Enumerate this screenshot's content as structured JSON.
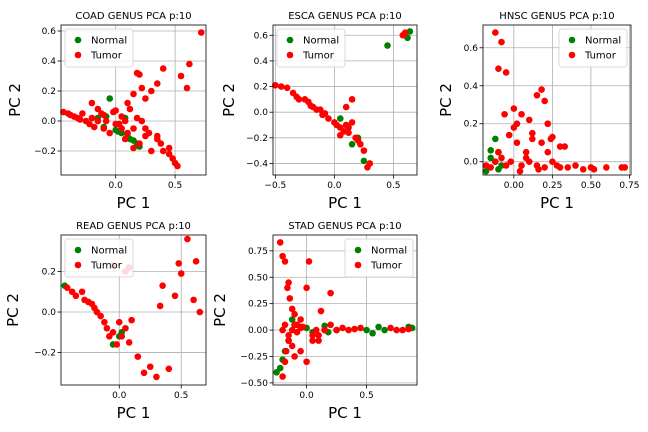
{
  "chart_data": [
    {
      "type": "scatter",
      "title": "COAD GENUS PCA p:10",
      "xlabel": "PC 1",
      "ylabel": "PC 2",
      "xlim": [
        -0.46,
        0.76
      ],
      "ylim": [
        -0.36,
        0.64
      ],
      "xticks": [
        0.0,
        0.5
      ],
      "xtick_labels": [
        "0.0",
        "0.5"
      ],
      "yticks": [
        -0.2,
        0.0,
        0.2,
        0.4,
        0.6
      ],
      "ytick_labels": [
        "−0.2",
        "0.0",
        "0.2",
        "0.4",
        "0.6"
      ],
      "grid": true,
      "legend": "upper-left",
      "series": [
        {
          "name": "Normal",
          "color": "#008000",
          "x": [
            -0.15,
            -0.1,
            -0.05,
            0.0,
            0.05,
            0.08,
            0.1,
            0.15,
            0.18,
            0.2,
            -0.08,
            0.02,
            0.12
          ],
          "y": [
            0.02,
            -0.04,
            0.15,
            -0.06,
            -0.08,
            0.02,
            -0.1,
            -0.13,
            -0.15,
            -0.17,
            0.03,
            -0.07,
            -0.12
          ]
        },
        {
          "name": "Tumor",
          "color": "#ff0000",
          "x": [
            -0.44,
            -0.4,
            -0.38,
            -0.35,
            -0.32,
            -0.3,
            -0.28,
            -0.25,
            -0.22,
            -0.2,
            -0.18,
            -0.15,
            -0.12,
            -0.1,
            -0.08,
            -0.05,
            -0.02,
            0.0,
            0.03,
            0.05,
            0.08,
            0.1,
            0.12,
            0.15,
            0.18,
            0.2,
            0.22,
            0.25,
            0.28,
            0.3,
            0.35,
            0.38,
            0.4,
            0.45,
            0.48,
            0.5,
            0.52,
            0.55,
            0.6,
            0.62,
            0.72,
            0.15,
            0.18,
            0.2,
            0.22,
            0.25,
            0.3,
            0.35,
            0.4,
            -0.2,
            -0.15,
            -0.1,
            0.0,
            0.05,
            0.08,
            0.1,
            0.15,
            0.25,
            0.35,
            0.45
          ],
          "y": [
            0.06,
            0.05,
            0.04,
            0.03,
            0.02,
            0.01,
            0.05,
            0.0,
            -0.02,
            0.02,
            -0.04,
            0.0,
            0.05,
            -0.05,
            0.0,
            -0.08,
            0.06,
            0.07,
            -0.02,
            0.03,
            0.0,
            0.12,
            0.08,
            -0.05,
            0.02,
            -0.15,
            0.0,
            -0.1,
            -0.08,
            -0.2,
            -0.12,
            -0.15,
            -0.2,
            -0.22,
            -0.25,
            -0.28,
            -0.3,
            0.3,
            0.22,
            0.38,
            0.59,
            0.18,
            0.32,
            0.31,
            0.22,
            0.15,
            0.2,
            0.25,
            0.35,
            0.12,
            0.08,
            0.04,
            -0.02,
            -0.05,
            -0.12,
            -0.08,
            -0.18,
            -0.05,
            -0.1,
            -0.18
          ]
        }
      ]
    },
    {
      "type": "scatter",
      "title": "ESCA GENUS PCA p:10",
      "xlabel": "PC 1",
      "ylabel": "PC 2",
      "xlim": [
        -0.52,
        0.7
      ],
      "ylim": [
        -0.49,
        0.68
      ],
      "xticks": [
        -0.5,
        0.0,
        0.5
      ],
      "xtick_labels": [
        "−0.5",
        "0.0",
        "0.5"
      ],
      "yticks": [
        -0.4,
        -0.2,
        0.0,
        0.2,
        0.4,
        0.6
      ],
      "ytick_labels": [
        "−0.4",
        "−0.2",
        "0.0",
        "0.2",
        "0.4",
        "0.6"
      ],
      "grid": true,
      "legend": "upper-left",
      "series": [
        {
          "name": "Normal",
          "color": "#008000",
          "x": [
            -0.1,
            0.05,
            0.1,
            0.15,
            0.2,
            0.25,
            0.45,
            0.62,
            0.64
          ],
          "y": [
            -0.02,
            -0.05,
            -0.1,
            -0.25,
            -0.2,
            -0.38,
            0.52,
            0.58,
            0.63
          ],
          "_note": null
        },
        {
          "name": "Tumor",
          "color": "#ff0000",
          "x": [
            -0.5,
            -0.45,
            -0.4,
            -0.35,
            -0.32,
            -0.3,
            -0.25,
            -0.22,
            -0.2,
            -0.18,
            -0.15,
            -0.12,
            -0.1,
            -0.08,
            -0.05,
            0.0,
            0.02,
            0.05,
            0.08,
            0.1,
            0.12,
            0.15,
            0.18,
            0.2,
            0.22,
            0.25,
            0.28,
            0.3,
            0.58,
            0.6,
            0.1,
            0.15,
            0.05,
            0.12
          ],
          "y": [
            0.21,
            0.2,
            0.19,
            0.15,
            0.12,
            0.1,
            0.1,
            0.08,
            0.05,
            0.04,
            0.02,
            0.02,
            -0.02,
            -0.01,
            -0.05,
            -0.08,
            -0.1,
            -0.12,
            -0.15,
            -0.1,
            -0.12,
            -0.08,
            -0.2,
            -0.22,
            -0.25,
            -0.3,
            -0.43,
            -0.4,
            0.6,
            0.62,
            0.04,
            0.1,
            -0.18,
            -0.16
          ]
        }
      ]
    },
    {
      "type": "scatter",
      "title": "HNSC GENUS PCA p:10",
      "xlabel": "PC 1",
      "ylabel": "PC 2",
      "xlim": [
        -0.2,
        0.76
      ],
      "ylim": [
        -0.07,
        0.72
      ],
      "xticks": [
        0.0,
        0.25,
        0.5,
        0.75
      ],
      "xtick_labels": [
        "0.00",
        "0.25",
        "0.50",
        "0.75"
      ],
      "yticks": [
        0.0,
        0.2,
        0.4,
        0.6
      ],
      "ytick_labels": [
        "0.0",
        "0.2",
        "0.4",
        "0.6"
      ],
      "grid": true,
      "legend": "upper-right",
      "series": [
        {
          "name": "Normal",
          "color": "#008000",
          "x": [
            -0.18,
            -0.15,
            -0.12,
            -0.1,
            -0.08,
            -0.12,
            -0.15,
            -0.1
          ],
          "y": [
            -0.05,
            0.06,
            0.12,
            0.05,
            -0.02,
            0.0,
            0.02,
            -0.04
          ],
          "_note": null
        },
        {
          "name": "Tumor",
          "color": "#ff0000",
          "x": [
            -0.18,
            -0.15,
            -0.12,
            -0.1,
            -0.08,
            -0.05,
            -0.02,
            0.0,
            0.02,
            0.05,
            0.08,
            0.1,
            0.12,
            0.15,
            0.18,
            0.2,
            0.22,
            0.25,
            0.28,
            0.3,
            0.35,
            0.4,
            0.45,
            0.5,
            0.52,
            0.6,
            0.7,
            0.72,
            -0.12,
            -0.08,
            -0.1,
            -0.05,
            0.0,
            0.05,
            0.1,
            0.15,
            0.2,
            0.25,
            0.3,
            0.12,
            0.18,
            0.22,
            0.08,
            0.02,
            -0.06,
            -0.03,
            0.04,
            0.16,
            0.24,
            0.33
          ],
          "y": [
            -0.02,
            -0.03,
            0.0,
            0.05,
            0.02,
            -0.02,
            0.0,
            0.18,
            0.1,
            -0.02,
            0.05,
            0.0,
            0.15,
            -0.02,
            0.1,
            -0.03,
            0.05,
            0.0,
            -0.02,
            -0.03,
            -0.03,
            -0.02,
            -0.04,
            -0.03,
            -0.04,
            -0.03,
            -0.03,
            -0.03,
            0.68,
            0.63,
            0.49,
            0.47,
            0.28,
            0.25,
            0.22,
            0.35,
            0.32,
            0.13,
            0.08,
            0.12,
            0.38,
            0.2,
            0.02,
            0.2,
            0.25,
            0.14,
            -0.05,
            -0.04,
            0.12,
            0.08
          ]
        }
      ]
    },
    {
      "type": "scatter",
      "title": "READ GENUS PCA p:10",
      "xlabel": "PC 1",
      "ylabel": "PC 2",
      "xlim": [
        -0.47,
        0.7
      ],
      "ylim": [
        -0.36,
        0.38
      ],
      "xticks": [
        0.0,
        0.5
      ],
      "xtick_labels": [
        "0.0",
        "0.5"
      ],
      "yticks": [
        -0.2,
        0.0,
        0.2
      ],
      "ytick_labels": [
        "−0.2",
        "0.0",
        "0.2"
      ],
      "grid": true,
      "legend": "upper-left",
      "series": [
        {
          "name": "Normal",
          "color": "#008000",
          "x": [
            -0.44,
            -0.05,
            0.0,
            0.02
          ],
          "y": [
            0.13,
            -0.16,
            -0.12,
            -0.1
          ],
          "_note": null
        },
        {
          "name": "Tumor",
          "color": "#ff0000",
          "x": [
            -0.42,
            -0.38,
            -0.35,
            -0.3,
            -0.28,
            -0.25,
            -0.22,
            -0.2,
            -0.18,
            -0.15,
            -0.12,
            -0.1,
            -0.08,
            -0.05,
            -0.02,
            0.0,
            0.02,
            0.05,
            0.08,
            0.1,
            0.15,
            0.2,
            0.25,
            0.3,
            0.33,
            0.35,
            0.4,
            0.45,
            0.48,
            0.5,
            0.55,
            0.6,
            0.62,
            0.65,
            -0.05,
            0.05,
            0.08
          ],
          "y": [
            0.12,
            0.1,
            0.08,
            0.1,
            0.06,
            0.05,
            0.04,
            0.02,
            0.0,
            -0.02,
            -0.05,
            -0.08,
            -0.12,
            -0.1,
            -0.16,
            -0.05,
            -0.12,
            0.2,
            0.22,
            -0.04,
            -0.22,
            -0.3,
            -0.27,
            -0.32,
            0.03,
            0.13,
            -0.28,
            0.08,
            0.24,
            0.19,
            0.36,
            0.06,
            0.25,
            0.0,
            0.23,
            -0.08,
            -0.15
          ]
        }
      ]
    },
    {
      "type": "scatter",
      "title": "STAD GENUS PCA p:10",
      "xlabel": "PC 1",
      "ylabel": "PC 2",
      "xlim": [
        -0.28,
        0.92
      ],
      "ylim": [
        -0.52,
        0.9
      ],
      "xticks": [
        0.0,
        0.5
      ],
      "xtick_labels": [
        "0.0",
        "0.5"
      ],
      "yticks": [
        -0.5,
        -0.25,
        0.0,
        0.25,
        0.5,
        0.75
      ],
      "ytick_labels": [
        "−0.50",
        "−0.25",
        "0.00",
        "0.25",
        "0.50",
        "0.75"
      ],
      "grid": true,
      "legend": "upper-right",
      "series": [
        {
          "name": "Normal",
          "color": "#008000",
          "x": [
            -0.25,
            -0.22,
            -0.2,
            -0.18,
            -0.15,
            -0.12,
            -0.1,
            0.0,
            0.05,
            0.15,
            0.25,
            0.5,
            0.55,
            0.6,
            0.65,
            0.85,
            0.88,
            0.18,
            -0.05
          ],
          "y": [
            -0.4,
            -0.36,
            -0.28,
            -0.2,
            -0.1,
            0.1,
            0.05,
            0.02,
            -0.02,
            0.04,
            0.0,
            0.0,
            -0.03,
            0.03,
            0.0,
            0.03,
            0.02,
            -0.02,
            0.03
          ]
        },
        {
          "name": "Tumor",
          "color": "#ff0000",
          "x": [
            -0.22,
            -0.2,
            -0.18,
            -0.16,
            -0.15,
            -0.14,
            -0.12,
            -0.1,
            -0.08,
            -0.05,
            -0.03,
            0.0,
            0.02,
            0.05,
            0.08,
            0.1,
            0.12,
            0.15,
            0.2,
            0.25,
            0.3,
            0.35,
            0.4,
            0.45,
            0.7,
            0.75,
            0.8,
            0.85,
            -0.2,
            -0.18,
            -0.17,
            -0.15,
            -0.12,
            -0.1,
            -0.05,
            0.0,
            0.05,
            0.1,
            0.15,
            0.2,
            -0.2,
            -0.18,
            -0.15,
            -0.12,
            -0.1,
            -0.08,
            -0.05
          ],
          "y": [
            0.83,
            0.7,
            0.65,
            0.4,
            0.45,
            0.3,
            0.2,
            0.15,
            0.05,
            0.1,
            0.03,
            0.4,
            0.65,
            -0.05,
            0.0,
            -0.1,
            0.18,
            0.0,
            0.35,
            0.0,
            0.02,
            0.0,
            0.01,
            0.02,
            0.02,
            0.0,
            0.0,
            0.01,
            -0.44,
            -0.3,
            -0.2,
            -0.1,
            -0.15,
            -0.25,
            -0.2,
            -0.3,
            -0.1,
            -0.05,
            0.0,
            0.05,
            0.0,
            0.05,
            -0.05,
            0.0,
            0.05,
            -0.02,
            0.02
          ]
        }
      ]
    }
  ]
}
